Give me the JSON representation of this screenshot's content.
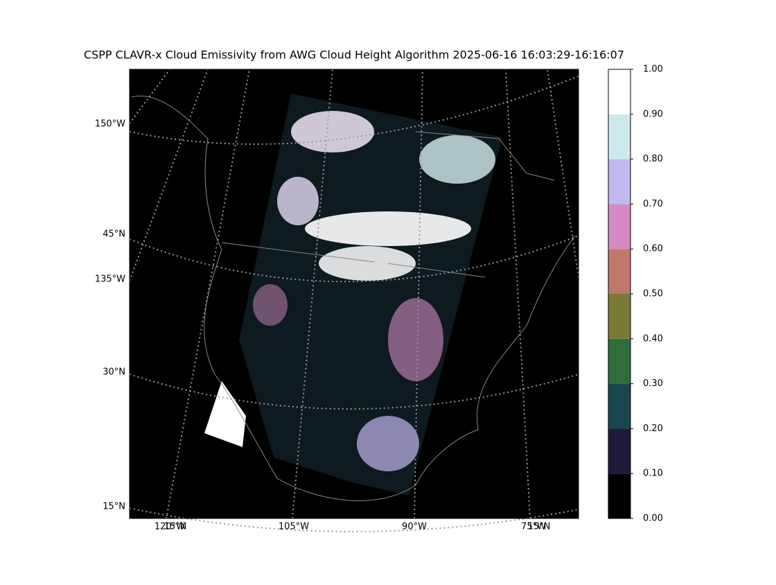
{
  "title": "CSPP CLAVR-x Cloud Emissivity from AWG Cloud Height Algorithm 2025-06-16 16:03:29-16:16:07",
  "map": {
    "left_labels": [
      "150°W",
      "45°N",
      "135°W",
      "30°N",
      "15°N"
    ],
    "bottom_labels": [
      "120°W",
      "15°N",
      "105°W",
      "90°W",
      "75°W",
      "15°N"
    ]
  },
  "colorbar": {
    "ylim": [
      0,
      1
    ],
    "ticks": [
      {
        "value": 0,
        "label": "0.00"
      },
      {
        "value": 0.1,
        "label": "0.10"
      },
      {
        "value": 0.2,
        "label": "0.20"
      },
      {
        "value": 0.3,
        "label": "0.30"
      },
      {
        "value": 0.4,
        "label": "0.40"
      },
      {
        "value": 0.5,
        "label": "0.50"
      },
      {
        "value": 0.6,
        "label": "0.60"
      },
      {
        "value": 0.7,
        "label": "0.70"
      },
      {
        "value": 0.8,
        "label": "0.80"
      },
      {
        "value": 0.9,
        "label": "0.90"
      },
      {
        "value": 1,
        "label": "1.00"
      }
    ],
    "bins": [
      0,
      0.1,
      0.2,
      0.3,
      0.4,
      0.5,
      0.6,
      0.7,
      0.8,
      0.9,
      1
    ],
    "colors": [
      "#000000",
      "#1f1a3a",
      "#17464f",
      "#2d6e3a",
      "#7a7a35",
      "#c0786a",
      "#d48bc4",
      "#c3b8ef",
      "#cde9ec",
      "#ffffff"
    ]
  }
}
